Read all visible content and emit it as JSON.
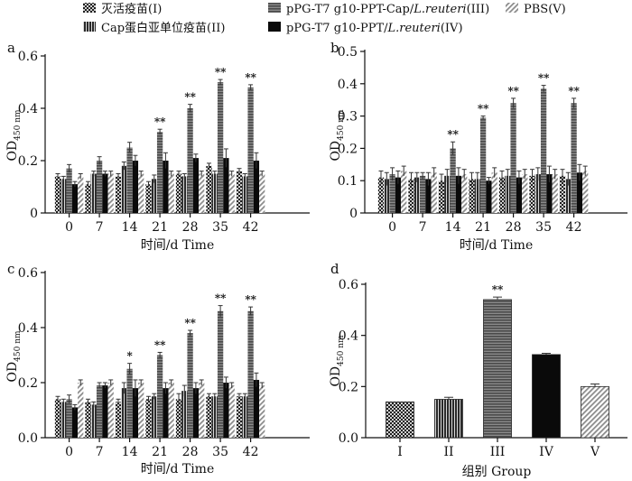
{
  "legend": [
    {
      "id": "I",
      "label": "灭活疫苗(I)",
      "pattern": "checker"
    },
    {
      "id": "II",
      "label": "Cap蛋白亚单位疫苗(II)",
      "pattern": "vstripe"
    },
    {
      "id": "III",
      "label_parts": [
        "pPG-T7 g10-PPT-Cap/",
        "L.reuteri",
        "(III)"
      ],
      "pattern": "hstripe"
    },
    {
      "id": "IV",
      "label_parts": [
        "pPG-T7 g10-PPT/",
        "L.reuteri",
        "(IV)"
      ],
      "pattern": "black"
    },
    {
      "id": "V",
      "label": "PBS(V)",
      "pattern": "diag"
    }
  ],
  "colors": {
    "I": "#3a3a3a",
    "II": "#4a4a4a",
    "III": "#6a6a6a",
    "IV": "#0a0a0a",
    "V": "#b8b8b8",
    "axis": "#111111"
  },
  "chart_data": [
    {
      "panel": "a",
      "type": "bar",
      "categories": [
        "0",
        "7",
        "14",
        "21",
        "28",
        "35",
        "42"
      ],
      "xlabel": "时间/d  Time",
      "ylabel": "OD",
      "ylabel_sub": "450 nm",
      "ylim": [
        0,
        0.6
      ],
      "yticks": [
        "0",
        "0.2",
        "0.4",
        "0.6"
      ],
      "ytick_values": [
        0,
        0.2,
        0.4,
        0.6
      ],
      "series": [
        {
          "name": "I",
          "values": [
            0.14,
            0.11,
            0.14,
            0.11,
            0.15,
            0.18,
            0.16
          ],
          "errors": [
            0.01,
            0.01,
            0.01,
            0.01,
            0.01,
            0.01,
            0.01
          ]
        },
        {
          "name": "II",
          "values": [
            0.13,
            0.15,
            0.18,
            0.13,
            0.14,
            0.15,
            0.14
          ],
          "errors": [
            0.01,
            0.01,
            0.015,
            0.015,
            0.01,
            0.01,
            0.01
          ]
        },
        {
          "name": "III",
          "values": [
            0.17,
            0.2,
            0.25,
            0.31,
            0.4,
            0.5,
            0.48
          ],
          "errors": [
            0.015,
            0.015,
            0.02,
            0.01,
            0.015,
            0.01,
            0.01
          ]
        },
        {
          "name": "IV",
          "values": [
            0.11,
            0.15,
            0.2,
            0.2,
            0.21,
            0.21,
            0.2
          ],
          "errors": [
            0.01,
            0.01,
            0.02,
            0.03,
            0.015,
            0.035,
            0.03
          ]
        },
        {
          "name": "V",
          "values": [
            0.14,
            0.15,
            0.15,
            0.15,
            0.15,
            0.15,
            0.15
          ],
          "errors": [
            0.01,
            0.01,
            0.01,
            0.01,
            0.01,
            0.01,
            0.01
          ]
        }
      ],
      "annotations": [
        {
          "category": "21",
          "series": "III",
          "text": "**"
        },
        {
          "category": "28",
          "series": "III",
          "text": "**"
        },
        {
          "category": "35",
          "series": "III",
          "text": "**"
        },
        {
          "category": "42",
          "series": "III",
          "text": "**"
        }
      ]
    },
    {
      "panel": "b",
      "type": "bar",
      "categories": [
        "0",
        "7",
        "14",
        "21",
        "28",
        "35",
        "42"
      ],
      "xlabel": "时间/d  Time",
      "ylabel": "OD",
      "ylabel_sub": "450 nm",
      "ylim": [
        0,
        0.5
      ],
      "yticks": [
        "0",
        "0.1",
        "0.2",
        "0.3",
        "0.4",
        "0.5"
      ],
      "ytick_values": [
        0,
        0.1,
        0.2,
        0.3,
        0.4,
        0.5
      ],
      "series": [
        {
          "name": "I",
          "values": [
            0.11,
            0.105,
            0.1,
            0.105,
            0.11,
            0.115,
            0.115
          ],
          "errors": [
            0.02,
            0.02,
            0.02,
            0.02,
            0.02,
            0.02,
            0.02
          ]
        },
        {
          "name": "II",
          "values": [
            0.105,
            0.11,
            0.115,
            0.105,
            0.115,
            0.12,
            0.105
          ],
          "errors": [
            0.02,
            0.015,
            0.02,
            0.02,
            0.02,
            0.02,
            0.02
          ]
        },
        {
          "name": "III",
          "values": [
            0.12,
            0.115,
            0.2,
            0.295,
            0.34,
            0.385,
            0.34
          ],
          "errors": [
            0.02,
            0.01,
            0.02,
            0.005,
            0.015,
            0.01,
            0.015
          ]
        },
        {
          "name": "IV",
          "values": [
            0.11,
            0.105,
            0.115,
            0.1,
            0.11,
            0.12,
            0.125
          ],
          "errors": [
            0.02,
            0.02,
            0.025,
            0.01,
            0.02,
            0.025,
            0.025
          ]
        },
        {
          "name": "V",
          "values": [
            0.13,
            0.125,
            0.12,
            0.125,
            0.12,
            0.12,
            0.13
          ],
          "errors": [
            0.015,
            0.015,
            0.015,
            0.015,
            0.015,
            0.015,
            0.015
          ]
        }
      ],
      "annotations": [
        {
          "category": "14",
          "series": "III",
          "text": "**"
        },
        {
          "category": "21",
          "series": "III",
          "text": "**"
        },
        {
          "category": "28",
          "series": "III",
          "text": "**"
        },
        {
          "category": "35",
          "series": "III",
          "text": "**"
        },
        {
          "category": "42",
          "series": "III",
          "text": "**"
        }
      ]
    },
    {
      "panel": "c",
      "type": "bar",
      "categories": [
        "0",
        "7",
        "14",
        "21",
        "28",
        "35",
        "42"
      ],
      "xlabel": "时间/d  Time",
      "ylabel": "OD",
      "ylabel_sub": "450 nm",
      "ylim": [
        0,
        0.6
      ],
      "yticks": [
        "0.0",
        "0.2",
        "0.4",
        "0.6"
      ],
      "ytick_values": [
        0,
        0.2,
        0.4,
        0.6
      ],
      "series": [
        {
          "name": "I",
          "values": [
            0.14,
            0.13,
            0.13,
            0.14,
            0.14,
            0.15,
            0.15
          ],
          "errors": [
            0.01,
            0.01,
            0.01,
            0.01,
            0.02,
            0.01,
            0.01
          ]
        },
        {
          "name": "II",
          "values": [
            0.13,
            0.12,
            0.18,
            0.15,
            0.17,
            0.15,
            0.15
          ],
          "errors": [
            0.01,
            0.01,
            0.02,
            0.01,
            0.02,
            0.01,
            0.01
          ]
        },
        {
          "name": "III",
          "values": [
            0.14,
            0.19,
            0.25,
            0.3,
            0.38,
            0.46,
            0.46
          ],
          "errors": [
            0.015,
            0.01,
            0.02,
            0.01,
            0.01,
            0.02,
            0.015
          ]
        },
        {
          "name": "IV",
          "values": [
            0.11,
            0.19,
            0.18,
            0.18,
            0.18,
            0.2,
            0.21
          ],
          "errors": [
            0.01,
            0.01,
            0.03,
            0.02,
            0.02,
            0.02,
            0.025
          ]
        },
        {
          "name": "V",
          "values": [
            0.2,
            0.2,
            0.2,
            0.2,
            0.2,
            0.19,
            0.19
          ],
          "errors": [
            0.01,
            0.01,
            0.01,
            0.01,
            0.01,
            0.01,
            0.01
          ]
        }
      ],
      "annotations": [
        {
          "category": "14",
          "series": "III",
          "text": "*"
        },
        {
          "category": "21",
          "series": "III",
          "text": "**"
        },
        {
          "category": "28",
          "series": "III",
          "text": "**"
        },
        {
          "category": "35",
          "series": "III",
          "text": "**"
        },
        {
          "category": "42",
          "series": "III",
          "text": "**"
        }
      ]
    },
    {
      "panel": "d",
      "type": "bar",
      "categories": [
        "I",
        "II",
        "III",
        "IV",
        "V"
      ],
      "xlabel": "组别  Group",
      "ylabel": "OD",
      "ylabel_sub": "450 nm",
      "ylim": [
        0,
        0.6
      ],
      "yticks": [
        "0.0",
        "0.2",
        "0.4",
        "0.6"
      ],
      "ytick_values": [
        0,
        0.2,
        0.4,
        0.6
      ],
      "values": [
        0.14,
        0.15,
        0.54,
        0.325,
        0.2
      ],
      "errors": [
        0.0,
        0.008,
        0.01,
        0.005,
        0.01
      ],
      "patterns": [
        "checker",
        "vstripe",
        "hstripe",
        "black",
        "diag"
      ],
      "annotations": [
        {
          "category": "III",
          "text": "**"
        }
      ]
    }
  ]
}
